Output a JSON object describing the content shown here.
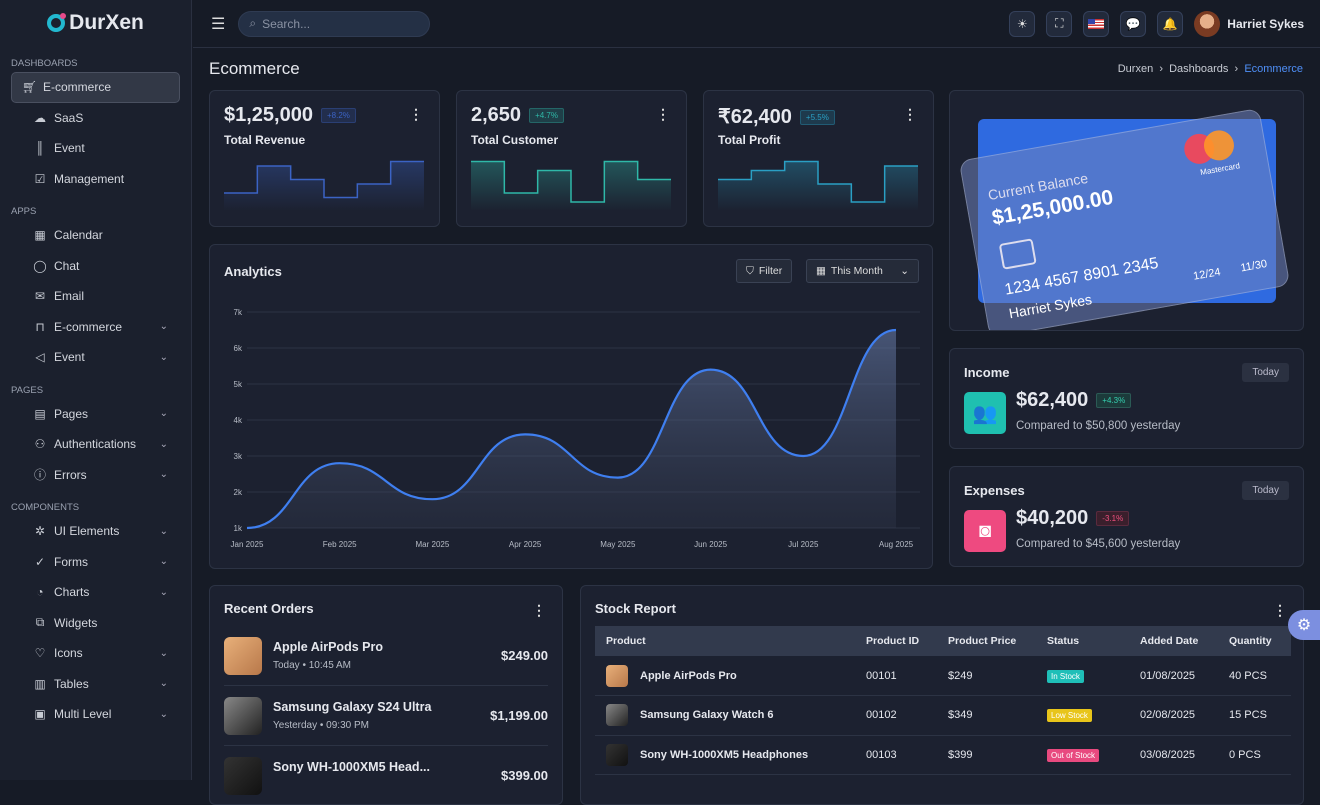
{
  "brand": "DurXen",
  "sidebar": {
    "sections": [
      {
        "title": "DASHBOARDS",
        "items": [
          {
            "label": "E-commerce",
            "icon": "cart-icon"
          },
          {
            "label": "SaaS",
            "icon": "cloud-icon"
          },
          {
            "label": "Event",
            "icon": "bars-icon"
          },
          {
            "label": "Management",
            "icon": "checkbox-icon"
          }
        ]
      },
      {
        "title": "APPS",
        "items": [
          {
            "label": "Calendar",
            "icon": "calendar-icon"
          },
          {
            "label": "Chat",
            "icon": "chat-icon"
          },
          {
            "label": "Email",
            "icon": "mail-icon"
          },
          {
            "label": "E-commerce",
            "icon": "bag-icon"
          },
          {
            "label": "Event",
            "icon": "megaphone-icon"
          }
        ]
      },
      {
        "title": "PAGES",
        "items": [
          {
            "label": "Pages",
            "icon": "file-icon"
          },
          {
            "label": "Authentications",
            "icon": "users-icon"
          },
          {
            "label": "Errors",
            "icon": "alert-icon"
          }
        ]
      },
      {
        "title": "COMPONENTS",
        "items": [
          {
            "label": "UI Elements",
            "icon": "bug-icon"
          },
          {
            "label": "Forms",
            "icon": "check-circle-icon"
          },
          {
            "label": "Charts",
            "icon": "pie-icon"
          },
          {
            "label": "Widgets",
            "icon": "puzzle-icon"
          },
          {
            "label": "Icons",
            "icon": "heart-icon"
          },
          {
            "label": "Tables",
            "icon": "table-icon"
          },
          {
            "label": "Multi Level",
            "icon": "layers-icon"
          }
        ]
      }
    ]
  },
  "topbar": {
    "search_placeholder": "Search...",
    "user": "Harriet Sykes"
  },
  "page": {
    "title": "Ecommerce",
    "breadcrumb": [
      "Durxen",
      "Dashboards",
      "Ecommerce"
    ]
  },
  "stats": [
    {
      "value": "$1,25,000",
      "change": "+8.2%",
      "label": "Total Revenue",
      "color": "#3b63c4",
      "steps": [
        2,
        5,
        3.5,
        1.5,
        3,
        5.5
      ]
    },
    {
      "value": "2,650",
      "change": "+4.7%",
      "label": "Total Customer",
      "color": "#2fb8a8",
      "steps": [
        5.5,
        2,
        4.5,
        1,
        5.5,
        3.5
      ]
    },
    {
      "value": "₹62,400",
      "change": "+5.5%",
      "label": "Total Profit",
      "color": "#2a9fc4",
      "steps": [
        3.5,
        4.5,
        5.5,
        3,
        1,
        5
      ]
    }
  ],
  "analytics": {
    "title": "Analytics",
    "filter": "Filter",
    "period": "This Month"
  },
  "chart_data": {
    "type": "area",
    "title": "Analytics",
    "categories": [
      "Jan 2025",
      "Feb 2025",
      "Mar 2025",
      "Apr 2025",
      "May 2025",
      "Jun 2025",
      "Jul 2025",
      "Aug 2025"
    ],
    "values": [
      1.0,
      2.8,
      1.8,
      3.6,
      2.4,
      5.4,
      3.0,
      6.5
    ],
    "yticks": [
      "1k",
      "2k",
      "3k",
      "4k",
      "5k",
      "6k",
      "7k"
    ],
    "ylim": [
      1,
      7
    ],
    "grid": true
  },
  "card": {
    "label": "Current Balance",
    "balance": "$1,25,000.00",
    "number": "1234 4567 8901 2345",
    "holder": "Harriet Sykes",
    "date1": "12/24",
    "date2": "11/30",
    "network": "Mastercard"
  },
  "income": {
    "title": "Income",
    "period": "Today",
    "value": "$62,400",
    "change": "+4.3%",
    "compare": "Compared to $50,800 yesterday"
  },
  "expenses": {
    "title": "Expenses",
    "period": "Today",
    "value": "$40,200",
    "change": "-3.1%",
    "compare": "Compared to $45,600 yesterday"
  },
  "orders": {
    "title": "Recent Orders",
    "items": [
      {
        "name": "Apple AirPods Pro",
        "time": "Today • 10:45 AM",
        "price": "$249.00"
      },
      {
        "name": "Samsung Galaxy S24 Ultra",
        "time": "Yesterday • 09:30 PM",
        "price": "$1,199.00"
      },
      {
        "name": "Sony WH-1000XM5 Head...",
        "time": "",
        "price": "$399.00"
      }
    ]
  },
  "stock": {
    "title": "Stock Report",
    "headers": [
      "Product",
      "Product ID",
      "Product Price",
      "Status",
      "Added Date",
      "Quantity"
    ],
    "rows": [
      {
        "name": "Apple AirPods Pro",
        "id": "00101",
        "price": "$249",
        "status": "In Stock",
        "date": "01/08/2025",
        "qty": "40 PCS",
        "color": "#1fbfb8"
      },
      {
        "name": "Samsung Galaxy Watch 6",
        "id": "00102",
        "price": "$349",
        "status": "Low Stock",
        "date": "02/08/2025",
        "qty": "15 PCS",
        "color": "#e8c51a"
      },
      {
        "name": "Sony WH-1000XM5 Headphones",
        "id": "00103",
        "price": "$399",
        "status": "Out of Stock",
        "date": "03/08/2025",
        "qty": "0 PCS",
        "color": "#e84a7f"
      }
    ]
  }
}
